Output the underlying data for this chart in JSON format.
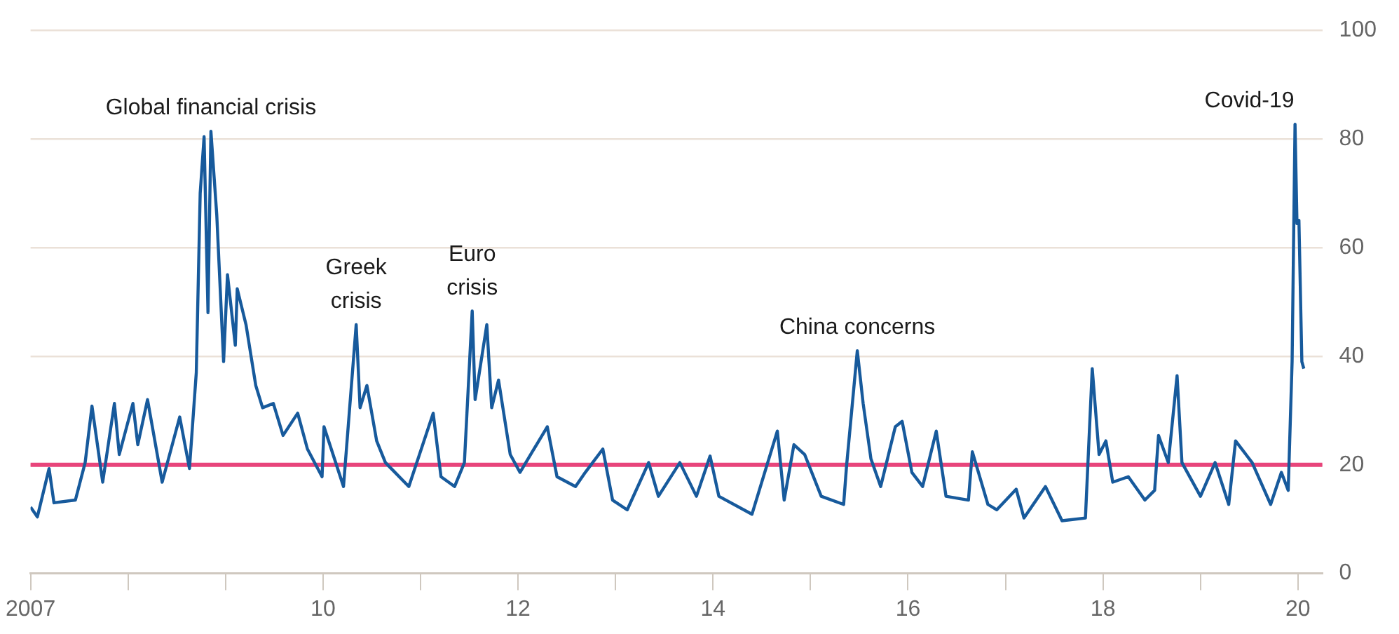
{
  "chart_data": {
    "type": "line",
    "x": [
      2007.0,
      2007.07,
      2007.19,
      2007.24,
      2007.46,
      2007.56,
      2007.63,
      2007.74,
      2007.86,
      2007.91,
      2008.05,
      2008.1,
      2008.2,
      2008.35,
      2008.53,
      2008.63,
      2008.7,
      2008.74,
      2008.78,
      2008.82,
      2008.85,
      2008.91,
      2008.98,
      2009.02,
      2009.1,
      2009.12,
      2009.21,
      2009.31,
      2009.38,
      2009.49,
      2009.59,
      2009.74,
      2009.84,
      2009.99,
      2010.01,
      2010.21,
      2010.34,
      2010.38,
      2010.45,
      2010.55,
      2010.64,
      2010.88,
      2011.13,
      2011.21,
      2011.35,
      2011.45,
      2011.53,
      2011.56,
      2011.68,
      2011.73,
      2011.8,
      2011.92,
      2012.02,
      2012.3,
      2012.4,
      2012.59,
      2012.69,
      2012.87,
      2012.97,
      2013.12,
      2013.34,
      2013.44,
      2013.66,
      2013.83,
      2013.97,
      2014.06,
      2014.4,
      2014.66,
      2014.73,
      2014.83,
      2014.94,
      2015.11,
      2015.34,
      2015.37,
      2015.48,
      2015.54,
      2015.62,
      2015.72,
      2015.87,
      2015.94,
      2016.04,
      2016.15,
      2016.29,
      2016.39,
      2016.62,
      2016.66,
      2016.82,
      2016.91,
      2017.11,
      2017.19,
      2017.41,
      2017.58,
      2017.82,
      2017.89,
      2017.96,
      2018.03,
      2018.1,
      2018.26,
      2018.43,
      2018.53,
      2018.57,
      2018.67,
      2018.76,
      2018.81,
      2019.0,
      2019.15,
      2019.29,
      2019.36,
      2019.53,
      2019.72,
      2019.83,
      2019.9,
      2019.94,
      2019.97,
      2019.99,
      2020.01,
      2020.04,
      2020.06
    ],
    "series": [
      {
        "color": "#175a9c",
        "values": [
          12.2,
          10.4,
          19.3,
          13,
          13.5,
          20.4,
          30.8,
          16.8,
          31.3,
          21.9,
          31.3,
          23.7,
          32,
          16.8,
          28.8,
          19.3,
          37,
          70,
          80.4,
          48,
          81.4,
          66,
          39,
          55,
          42,
          52.4,
          45.8,
          34.6,
          30.5,
          31.3,
          25.4,
          29.5,
          22.9,
          17.8,
          27,
          16,
          45.8,
          30.5,
          34.6,
          24.4,
          20.4,
          16,
          29.5,
          17.8,
          16,
          20.4,
          48.3,
          32,
          45.8,
          30.5,
          35.6,
          21.9,
          18.6,
          27,
          17.8,
          16,
          18.6,
          22.9,
          13.5,
          11.7,
          20.4,
          14.2,
          20.4,
          14.2,
          21.6,
          14.2,
          10.9,
          26.2,
          13.5,
          23.7,
          21.9,
          14.2,
          12.7,
          19.8,
          41,
          31.3,
          21.1,
          16,
          27,
          28,
          18.6,
          16,
          26.2,
          14.2,
          13.5,
          22.4,
          12.7,
          11.7,
          15.5,
          10.2,
          16,
          9.7,
          10.2,
          37.7,
          21.9,
          24.4,
          16.8,
          17.8,
          13.5,
          15.3,
          25.4,
          20.4,
          36.4,
          20.4,
          14.2,
          20.4,
          12.7,
          24.4,
          20.4,
          12.7,
          18.6,
          15.3,
          39,
          82.7,
          64.4,
          65,
          39,
          37.7
        ]
      }
    ],
    "xlim": [
      2007,
      2020.25
    ],
    "xticks": [
      {
        "value": 2007,
        "label": "2007"
      },
      {
        "value": 2008,
        "label": null
      },
      {
        "value": 2009,
        "label": null
      },
      {
        "value": 2010,
        "label": "10"
      },
      {
        "value": 2011,
        "label": null
      },
      {
        "value": 2012,
        "label": "12"
      },
      {
        "value": 2013,
        "label": null
      },
      {
        "value": 2014,
        "label": "14"
      },
      {
        "value": 2015,
        "label": null
      },
      {
        "value": 2016,
        "label": "16"
      },
      {
        "value": 2017,
        "label": null
      },
      {
        "value": 2018,
        "label": "18"
      },
      {
        "value": 2019,
        "label": null
      },
      {
        "value": 2020,
        "label": "20"
      }
    ],
    "ylim": [
      0,
      100
    ],
    "yticks": [
      0,
      20,
      40,
      60,
      80,
      100
    ],
    "grid": "y",
    "marker": "none",
    "line_style": "solid",
    "ref_lines": [
      {
        "axis": "y",
        "value": 20,
        "color": "#e8457b"
      }
    ],
    "annotations": [
      {
        "text": "Global financial crisis",
        "x": 2008.85,
        "y": 81.4
      },
      {
        "text": "Greek\ncrisis",
        "x": 2010.34,
        "y": 45.8
      },
      {
        "text": "Euro\ncrisis",
        "x": 2011.53,
        "y": 48.3
      },
      {
        "text": "China concerns",
        "x": 2015.48,
        "y": 41
      },
      {
        "text": "Covid-19",
        "x": 2019.97,
        "y": 82.7
      }
    ]
  }
}
